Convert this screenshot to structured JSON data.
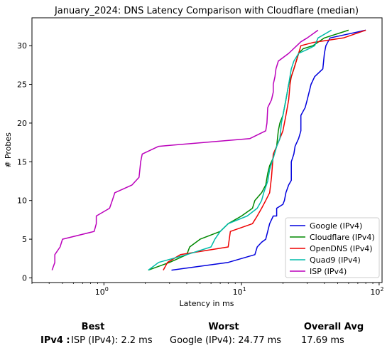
{
  "chart_data": {
    "type": "line",
    "title": "January_2024: DNS Latency Comparison with Cloudflare (median)",
    "xlabel": "Latency in ms",
    "ylabel": "# Probes",
    "xscale": "log",
    "xlim": [
      0.3,
      105
    ],
    "ylim": [
      -0.6,
      33.6
    ],
    "x_ticks": [
      1,
      10,
      100
    ],
    "x_tick_labels": [
      "10^0",
      "10^1",
      "10^2"
    ],
    "y_ticks": [
      0,
      5,
      10,
      15,
      20,
      25,
      30
    ],
    "grid": false,
    "legend_position": "lower-right",
    "series": [
      {
        "name": "Google (IPv4)",
        "color": "#0000dd",
        "points": [
          [
            3.1,
            1
          ],
          [
            8,
            2
          ],
          [
            12.5,
            3
          ],
          [
            13,
            4
          ],
          [
            14,
            4.6
          ],
          [
            15,
            5
          ],
          [
            16,
            7
          ],
          [
            17,
            8
          ],
          [
            18,
            8
          ],
          [
            18,
            9
          ],
          [
            20,
            9.5
          ],
          [
            20.5,
            10
          ],
          [
            21,
            11
          ],
          [
            22,
            12
          ],
          [
            23,
            12.6
          ],
          [
            23,
            15
          ],
          [
            24,
            16
          ],
          [
            24.5,
            17
          ],
          [
            26,
            18
          ],
          [
            27,
            19
          ],
          [
            27,
            21
          ],
          [
            29,
            22
          ],
          [
            30,
            23
          ],
          [
            32,
            25
          ],
          [
            34,
            26
          ],
          [
            39,
            27
          ],
          [
            40,
            29
          ],
          [
            41,
            30
          ],
          [
            44,
            31
          ],
          [
            80,
            32
          ]
        ]
      },
      {
        "name": "Cloudflare (IPv4)",
        "color": "#008800",
        "points": [
          [
            2.1,
            1
          ],
          [
            2.6,
            1.6
          ],
          [
            3,
            2
          ],
          [
            4,
            3
          ],
          [
            4.2,
            4
          ],
          [
            5,
            5
          ],
          [
            7,
            6
          ],
          [
            8,
            7
          ],
          [
            10,
            8
          ],
          [
            12,
            9
          ],
          [
            12.5,
            10
          ],
          [
            14,
            11
          ],
          [
            15,
            12
          ],
          [
            15.5,
            13.5
          ],
          [
            16,
            14.5
          ],
          [
            17,
            15.5
          ],
          [
            18,
            17
          ],
          [
            18.5,
            19
          ],
          [
            19,
            20
          ],
          [
            20,
            21
          ],
          [
            21,
            23
          ],
          [
            22,
            25
          ],
          [
            23,
            26
          ],
          [
            24,
            27
          ],
          [
            25,
            28
          ],
          [
            26,
            29
          ],
          [
            28,
            29.6
          ],
          [
            33,
            30
          ],
          [
            40,
            31
          ],
          [
            60,
            32
          ]
        ]
      },
      {
        "name": "OpenDNS (IPv4)",
        "color": "#ee0000",
        "points": [
          [
            2.7,
            1
          ],
          [
            2.9,
            2
          ],
          [
            3.6,
            3
          ],
          [
            8,
            4
          ],
          [
            8.3,
            6
          ],
          [
            12,
            7
          ],
          [
            13,
            8
          ],
          [
            14,
            9
          ],
          [
            15,
            10
          ],
          [
            16,
            11
          ],
          [
            16.5,
            13
          ],
          [
            17,
            16
          ],
          [
            18,
            17
          ],
          [
            19,
            18
          ],
          [
            20,
            19
          ],
          [
            21,
            21
          ],
          [
            22,
            23
          ],
          [
            22.5,
            25
          ],
          [
            23,
            26
          ],
          [
            24,
            27
          ],
          [
            25,
            28
          ],
          [
            26,
            29
          ],
          [
            27,
            30
          ],
          [
            33,
            30.4
          ],
          [
            55,
            31
          ],
          [
            80,
            32
          ]
        ]
      },
      {
        "name": "Quad9 (IPv4)",
        "color": "#00bbaa",
        "points": [
          [
            2.1,
            1
          ],
          [
            2.5,
            2
          ],
          [
            4,
            3
          ],
          [
            6,
            4
          ],
          [
            6.4,
            5
          ],
          [
            7,
            6
          ],
          [
            8,
            7
          ],
          [
            11,
            8
          ],
          [
            13,
            9
          ],
          [
            14,
            10
          ],
          [
            14.5,
            11
          ],
          [
            15.5,
            12.5
          ],
          [
            16,
            14
          ],
          [
            17,
            15.5
          ],
          [
            18,
            17
          ],
          [
            19,
            18
          ],
          [
            19.5,
            20
          ],
          [
            20,
            21
          ],
          [
            21,
            23
          ],
          [
            22,
            25
          ],
          [
            23,
            27
          ],
          [
            24,
            28
          ],
          [
            26,
            29
          ],
          [
            30,
            29.5
          ],
          [
            34,
            30
          ],
          [
            36,
            31
          ],
          [
            45,
            32
          ]
        ]
      },
      {
        "name": "ISP (IPv4)",
        "color": "#bb00bb",
        "points": [
          [
            0.42,
            1
          ],
          [
            0.44,
            2
          ],
          [
            0.44,
            3
          ],
          [
            0.48,
            4
          ],
          [
            0.5,
            5
          ],
          [
            0.85,
            6
          ],
          [
            0.88,
            7
          ],
          [
            0.88,
            8
          ],
          [
            1.1,
            9
          ],
          [
            1.15,
            10
          ],
          [
            1.2,
            11
          ],
          [
            1.6,
            12
          ],
          [
            1.8,
            13
          ],
          [
            1.85,
            15
          ],
          [
            1.9,
            16
          ],
          [
            2.5,
            17
          ],
          [
            11.5,
            18
          ],
          [
            15,
            19
          ],
          [
            15.3,
            20
          ],
          [
            15.5,
            22
          ],
          [
            16.5,
            23
          ],
          [
            17,
            24
          ],
          [
            17,
            25
          ],
          [
            17.5,
            26
          ],
          [
            17.8,
            27
          ],
          [
            18.5,
            28
          ],
          [
            22,
            29
          ],
          [
            27,
            30.5
          ],
          [
            30,
            31
          ],
          [
            36,
            32
          ]
        ]
      }
    ]
  },
  "stats": {
    "headers": {
      "best": "Best",
      "worst": "Worst",
      "avg": "Overall Avg"
    },
    "rows": [
      {
        "label": "IPv4 :",
        "best": "ISP (IPv4): 2.2 ms",
        "worst": "Google (IPv4): 24.77 ms",
        "avg": "17.69 ms"
      }
    ]
  }
}
